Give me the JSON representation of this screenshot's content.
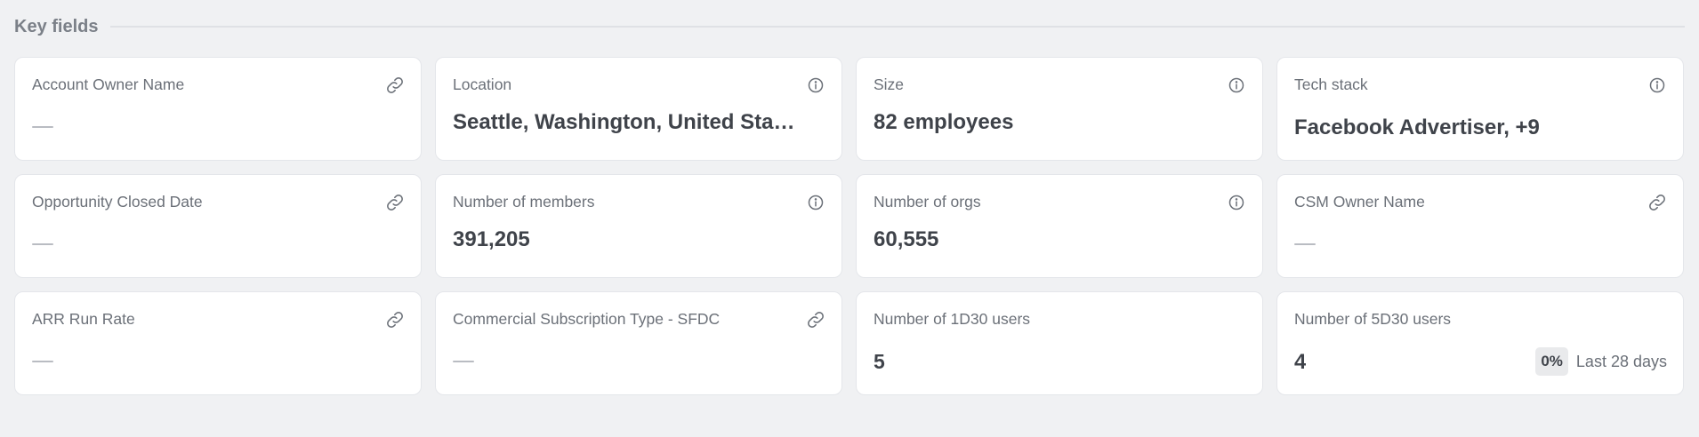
{
  "section": {
    "title": "Key fields"
  },
  "fields": {
    "account_owner": {
      "label": "Account Owner Name",
      "value": "—",
      "icon": "link-icon"
    },
    "location": {
      "label": "Location",
      "value": "Seattle, Washington, United Sta…",
      "icon": "info-icon"
    },
    "size": {
      "label": "Size",
      "value": "82 employees",
      "icon": "info-icon"
    },
    "tech_stack": {
      "label": "Tech stack",
      "value": "Facebook Advertiser, +9",
      "icon": "info-icon"
    },
    "opportunity_closed_date": {
      "label": "Opportunity Closed Date",
      "value": "—",
      "icon": "link-icon"
    },
    "number_of_members": {
      "label": "Number of members",
      "value": "391,205",
      "icon": "info-icon"
    },
    "number_of_orgs": {
      "label": "Number of orgs",
      "value": "60,555",
      "icon": "info-icon"
    },
    "csm_owner": {
      "label": "CSM Owner Name",
      "value": "—",
      "icon": "link-icon"
    },
    "arr_run_rate": {
      "label": "ARR Run Rate",
      "value": "—",
      "icon": "link-icon"
    },
    "commercial_subscription_type": {
      "label": "Commercial Subscription Type - SFDC",
      "value": "—",
      "icon": "link-icon"
    },
    "users_1d30": {
      "label": "Number of 1D30 users",
      "value": "5"
    },
    "users_5d30": {
      "label": "Number of 5D30 users",
      "value": "4",
      "change": "0%",
      "period": "Last 28 days"
    }
  },
  "colors": {
    "page_background": "#f0f1f3",
    "card_background": "#ffffff",
    "label_text": "#6b7078",
    "value_text": "#3f434a",
    "icon_stroke": "#6b7078"
  }
}
